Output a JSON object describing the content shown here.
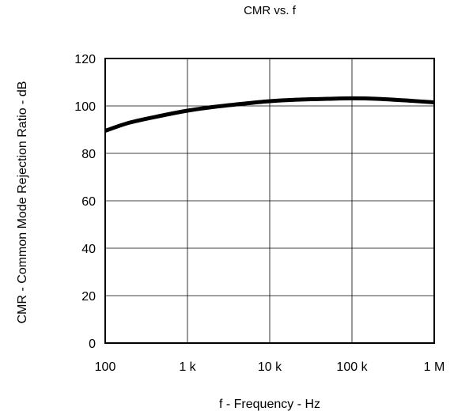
{
  "chart_data": {
    "type": "line",
    "title": "CMR vs. f",
    "xlabel": "f - Frequency - Hz",
    "ylabel": "CMR - Common Mode Rejection Ratio - dB",
    "x_scale": "log",
    "xlim": [
      100,
      1000000
    ],
    "ylim": [
      0,
      120
    ],
    "x_ticks": [
      100,
      1000,
      10000,
      100000,
      1000000
    ],
    "x_tick_labels": [
      "100",
      "1 k",
      "10 k",
      "100 k",
      "1 M"
    ],
    "y_ticks": [
      0,
      20,
      40,
      60,
      80,
      100,
      120
    ],
    "y_tick_labels": [
      "0",
      "20",
      "40",
      "60",
      "80",
      "100",
      "120"
    ],
    "grid": true,
    "series": [
      {
        "x": [
          100,
          200,
          500,
          1000,
          2000,
          5000,
          10000,
          20000,
          50000,
          100000,
          200000,
          500000,
          1000000
        ],
        "values": [
          89.5,
          93,
          96,
          98,
          99.5,
          101,
          102,
          102.6,
          103,
          103.2,
          103,
          102.2,
          101.5
        ],
        "color": "#000000"
      }
    ]
  }
}
